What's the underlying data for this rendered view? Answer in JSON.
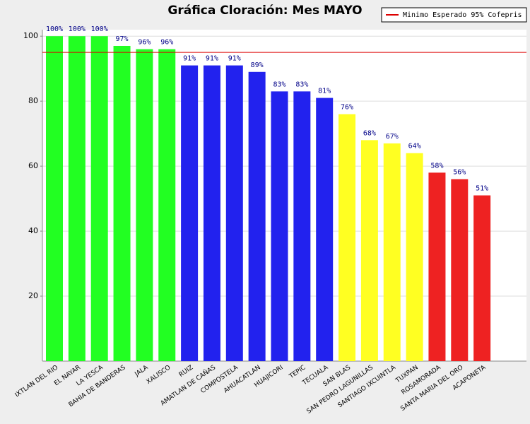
{
  "chart_data": {
    "type": "bar",
    "title": "Gráfica Cloración: Mes MAYO",
    "categories": [
      "IXTLAN DEL RIO",
      "EL NAYAR",
      "LA YESCA",
      "BAHIA DE BANDERAS",
      "JALA",
      "XALISCO",
      "RUIZ",
      "AMATLAN DE CAÑAS",
      "COMPOSTELA",
      "AHUACATLAN",
      "HUAJICORI",
      "TEPIC",
      "TECUALA",
      "SAN BLAS",
      "SAN PEDRO LAGUNILLAS",
      "SANTIAGO IXCUINTLA",
      "TUXPAN",
      "ROSAMORADA",
      "SANTA MARIA DEL ORO",
      "ACAPONETA"
    ],
    "values": [
      100,
      100,
      100,
      97,
      96,
      96,
      91,
      91,
      91,
      89,
      83,
      83,
      81,
      76,
      68,
      67,
      64,
      58,
      56,
      51
    ],
    "value_labels": [
      "100%",
      "100%",
      "100%",
      "97%",
      "96%",
      "96%",
      "91%",
      "91%",
      "91%",
      "89%",
      "83%",
      "83%",
      "81%",
      "76%",
      "68%",
      "67%",
      "64%",
      "58%",
      "56%",
      "51%"
    ],
    "colors": [
      "#22ff22",
      "#22ff22",
      "#22ff22",
      "#22ff22",
      "#22ff22",
      "#22ff22",
      "#2222ee",
      "#2222ee",
      "#2222ee",
      "#2222ee",
      "#2222ee",
      "#2222ee",
      "#2222ee",
      "#ffff22",
      "#ffff22",
      "#ffff22",
      "#ffff22",
      "#ee2222",
      "#ee2222",
      "#ee2222"
    ],
    "ylim": [
      0,
      102
    ],
    "yticks": [
      20,
      40,
      60,
      80,
      100
    ],
    "grid": true,
    "threshold": {
      "name": "Minimo Esperado 95% Cofepris",
      "value": 95,
      "color": "#dd0000"
    },
    "legend": "top-right"
  }
}
